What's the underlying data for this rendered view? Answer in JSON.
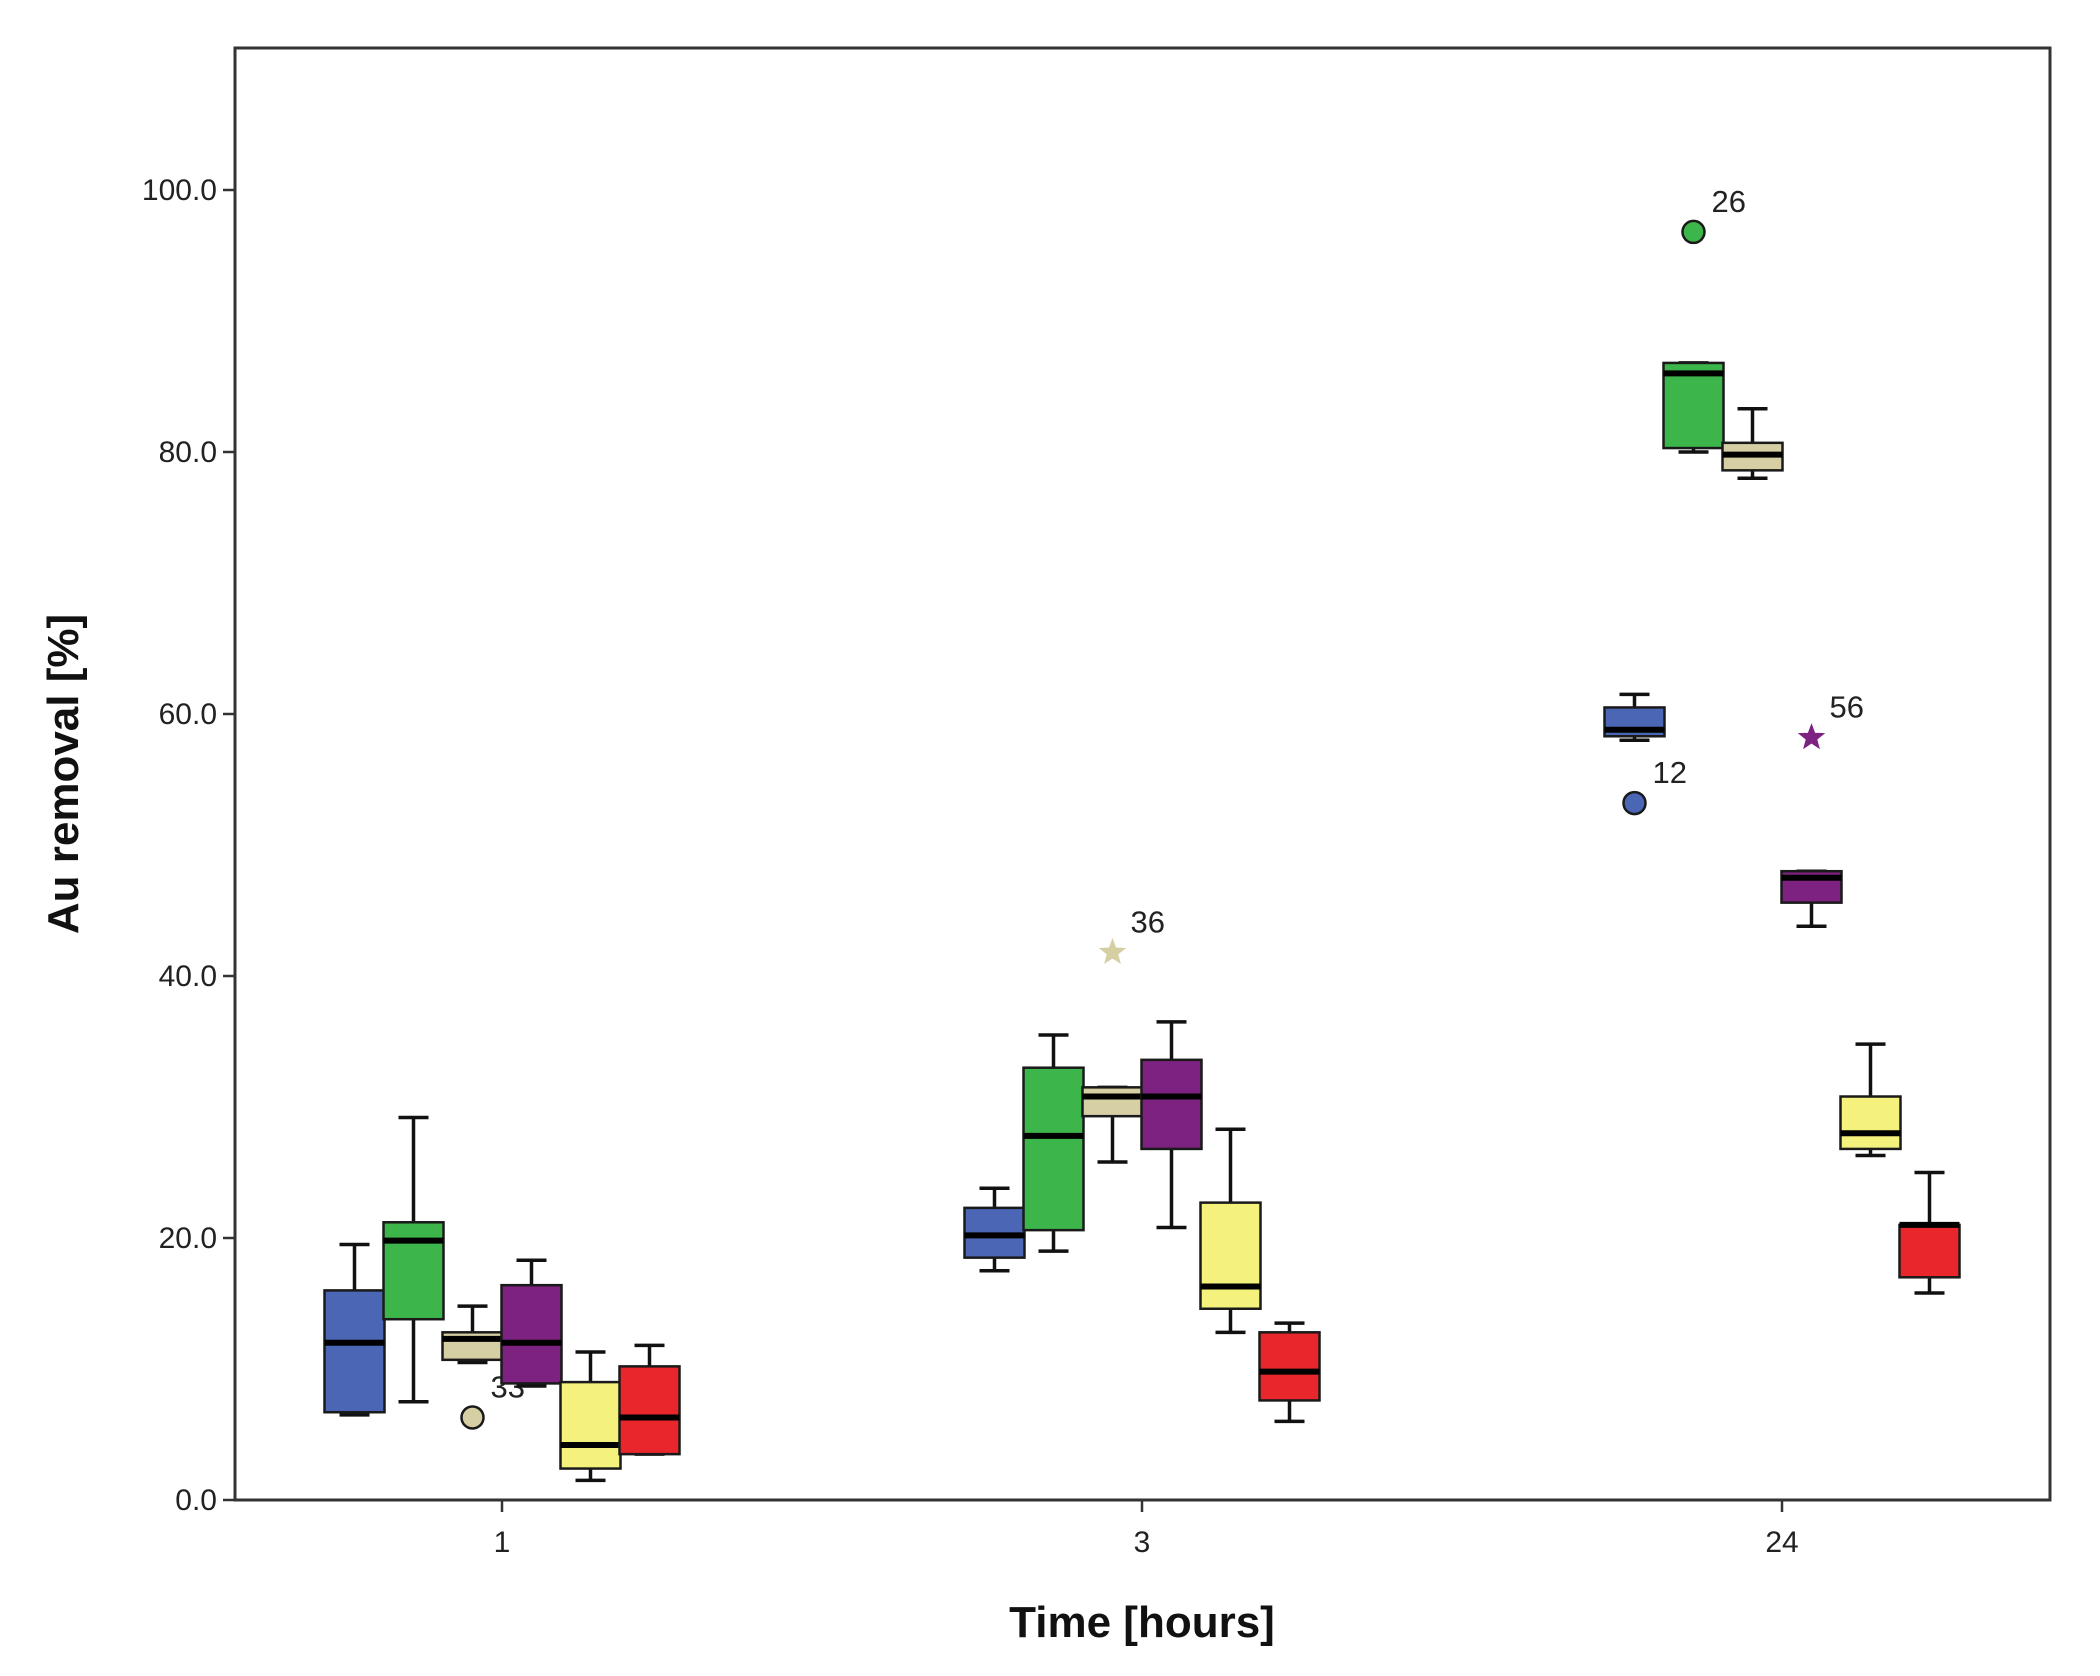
{
  "chart_data": {
    "type": "boxplot",
    "xlabel": "Time [hours]",
    "ylabel": "Au removal [%]",
    "ylim": [
      0,
      111
    ],
    "yticks": [
      "0.0",
      "20.0",
      "40.0",
      "60.0",
      "80.0",
      "100.0"
    ],
    "categories": [
      "1",
      "3",
      "24"
    ],
    "grid": false,
    "series": [
      {
        "color": "#4a66b5",
        "boxes": [
          {
            "min": 6.5,
            "q1": 6.7,
            "median": 12.0,
            "q3": 16.0,
            "max": 19.5
          },
          {
            "min": 17.5,
            "q1": 18.5,
            "median": 20.2,
            "q3": 22.3,
            "max": 23.8
          },
          {
            "min": 58.0,
            "q1": 58.3,
            "median": 58.8,
            "q3": 60.5,
            "max": 61.5,
            "outliers": [
              {
                "value": 53.2,
                "label": "12",
                "marker": "circle"
              }
            ]
          }
        ]
      },
      {
        "color": "#3cb54a",
        "boxes": [
          {
            "min": 7.5,
            "q1": 13.8,
            "median": 19.8,
            "q3": 21.2,
            "max": 29.2
          },
          {
            "min": 19.0,
            "q1": 20.6,
            "median": 27.8,
            "q3": 33.0,
            "max": 35.5
          },
          {
            "min": 80.0,
            "q1": 80.3,
            "median": 86.0,
            "q3": 86.8,
            "max": 86.8,
            "outliers": [
              {
                "value": 96.8,
                "label": "26",
                "marker": "circle"
              }
            ]
          }
        ]
      },
      {
        "color": "#d6cfa3",
        "boxes": [
          {
            "min": 10.5,
            "q1": 10.7,
            "median": 12.3,
            "q3": 12.8,
            "max": 14.8,
            "outliers": [
              {
                "value": 6.3,
                "label": "33",
                "marker": "circle"
              }
            ]
          },
          {
            "min": 25.8,
            "q1": 29.3,
            "median": 30.8,
            "q3": 31.5,
            "max": 31.5,
            "outliers": [
              {
                "value": 41.8,
                "label": "36",
                "marker": "star"
              }
            ]
          },
          {
            "min": 78.0,
            "q1": 78.6,
            "median": 79.8,
            "q3": 80.7,
            "max": 83.3
          }
        ]
      },
      {
        "color": "#7d2280",
        "boxes": [
          {
            "min": 8.7,
            "q1": 8.9,
            "median": 12.0,
            "q3": 16.4,
            "max": 18.3
          },
          {
            "min": 20.8,
            "q1": 26.8,
            "median": 30.8,
            "q3": 33.6,
            "max": 36.5
          },
          {
            "min": 43.8,
            "q1": 45.6,
            "median": 47.5,
            "q3": 48.0,
            "max": 48.0,
            "outliers": [
              {
                "value": 58.2,
                "label": "56",
                "marker": "star"
              }
            ]
          }
        ]
      },
      {
        "color": "#f4f17c",
        "boxes": [
          {
            "min": 1.5,
            "q1": 2.4,
            "median": 4.2,
            "q3": 9.0,
            "max": 11.3
          },
          {
            "min": 12.8,
            "q1": 14.6,
            "median": 16.3,
            "q3": 22.7,
            "max": 28.3
          },
          {
            "min": 26.3,
            "q1": 26.8,
            "median": 28.0,
            "q3": 30.8,
            "max": 34.8
          }
        ]
      },
      {
        "color": "#e8262c",
        "boxes": [
          {
            "min": 3.5,
            "q1": 3.5,
            "median": 6.3,
            "q3": 10.2,
            "max": 11.8
          },
          {
            "min": 6.0,
            "q1": 7.6,
            "median": 9.8,
            "q3": 12.8,
            "max": 13.5
          },
          {
            "min": 15.8,
            "q1": 17.0,
            "median": 21.0,
            "q3": 21.0,
            "max": 25.0
          }
        ]
      }
    ]
  }
}
